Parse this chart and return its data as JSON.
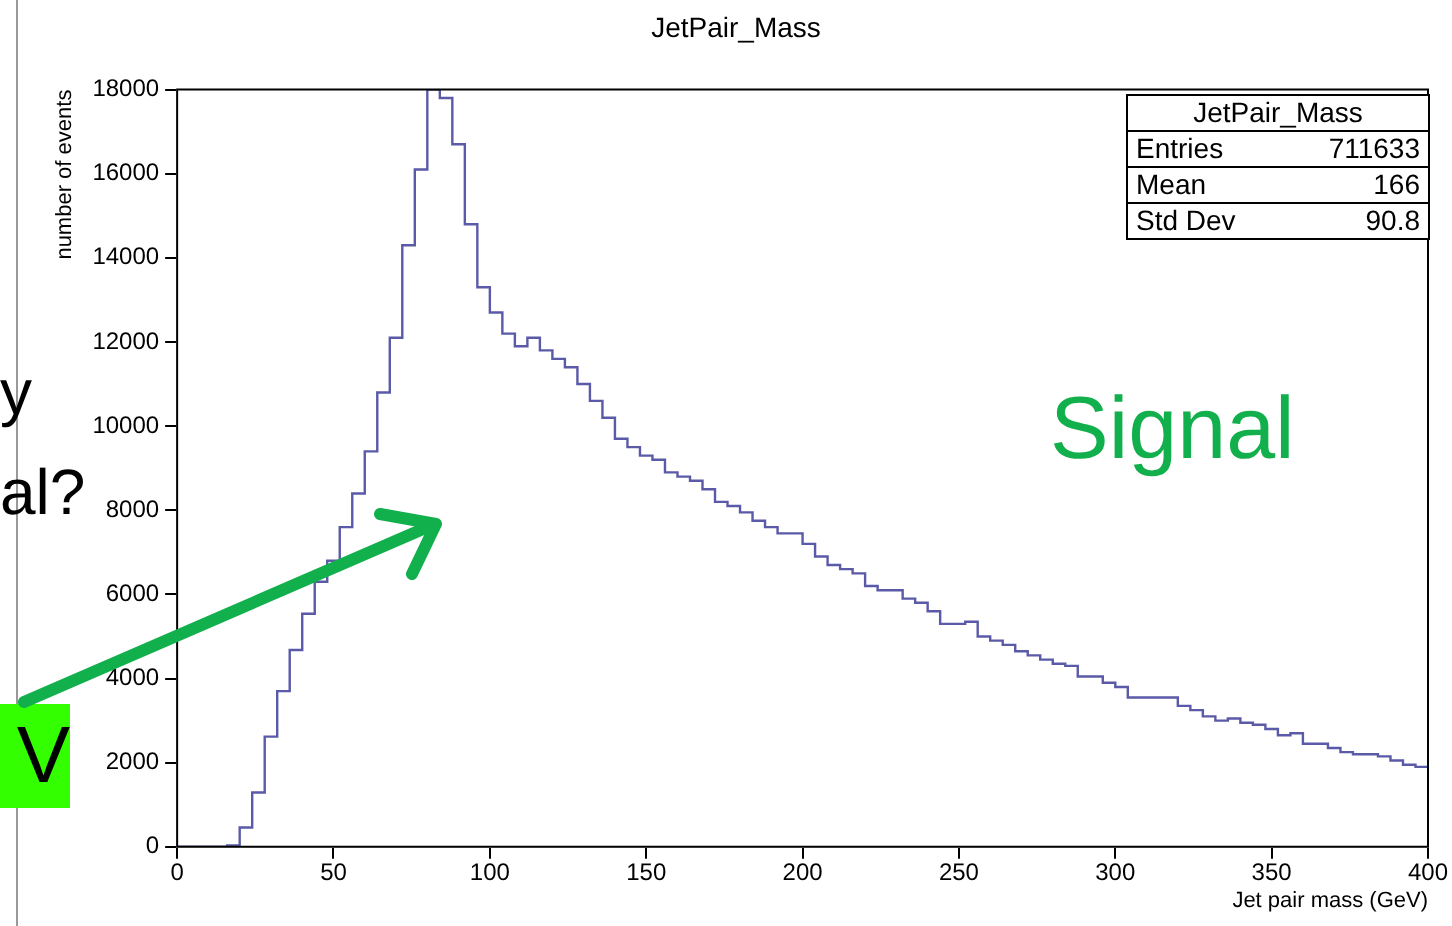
{
  "chart_data": {
    "type": "histogram",
    "title": "JetPair_Mass",
    "xlabel": "Jet pair mass (GeV)",
    "ylabel": "number of events",
    "bins": [
      0,
      4,
      8,
      12,
      16,
      20,
      24,
      28,
      32,
      36,
      40,
      44,
      48,
      52,
      56,
      60,
      64,
      68,
      72,
      76,
      80,
      84,
      88,
      92,
      96,
      100,
      104,
      108,
      112,
      116,
      120,
      124,
      128,
      132,
      136,
      140,
      144,
      148,
      152,
      156,
      160,
      164,
      168,
      172,
      176,
      180,
      184,
      188,
      192,
      196,
      200,
      204,
      208,
      212,
      216,
      220,
      224,
      228,
      232,
      236,
      240,
      244,
      248,
      252,
      256,
      260,
      264,
      268,
      272,
      276,
      280,
      284,
      288,
      292,
      296,
      300,
      304,
      308,
      312,
      316,
      320,
      324,
      328,
      332,
      336,
      340,
      344,
      348,
      352,
      356,
      360,
      364,
      368,
      372,
      376,
      380,
      384,
      388,
      392,
      396,
      400
    ],
    "values": [
      0,
      0,
      0,
      0,
      30,
      460,
      1290,
      2620,
      3700,
      4680,
      5540,
      6300,
      6800,
      7600,
      8400,
      9400,
      10800,
      12100,
      14300,
      16100,
      18000,
      17800,
      16700,
      14800,
      13300,
      12700,
      12200,
      11900,
      12100,
      11800,
      11600,
      11400,
      11000,
      10600,
      10200,
      9700,
      9500,
      9300,
      9200,
      8900,
      8800,
      8700,
      8500,
      8200,
      8100,
      7950,
      7750,
      7600,
      7450,
      7450,
      7200,
      6900,
      6700,
      6600,
      6500,
      6200,
      6100,
      6100,
      5900,
      5800,
      5600,
      5300,
      5300,
      5350,
      5000,
      4900,
      4800,
      4650,
      4550,
      4450,
      4350,
      4300,
      4050,
      4050,
      3900,
      3800,
      3550,
      3550,
      3550,
      3550,
      3350,
      3250,
      3100,
      3000,
      3050,
      2950,
      2900,
      2800,
      2650,
      2700,
      2450,
      2450,
      2350,
      2250,
      2200,
      2200,
      2150,
      2050,
      1950,
      1900
    ],
    "color": "#5a5aa8",
    "xlim": [
      0,
      400
    ],
    "xticks": [
      0,
      50,
      100,
      150,
      200,
      250,
      300,
      350,
      400
    ],
    "ylim": [
      0,
      18000
    ],
    "yticks": [
      0,
      2000,
      4000,
      6000,
      8000,
      10000,
      12000,
      14000,
      16000,
      18000
    ],
    "annotations": [
      "JetPair_Mass",
      "Entries",
      "711633",
      "Mean",
      "166",
      "Std Dev",
      "90.8",
      "Signal",
      "y",
      "al?",
      "V"
    ]
  }
}
